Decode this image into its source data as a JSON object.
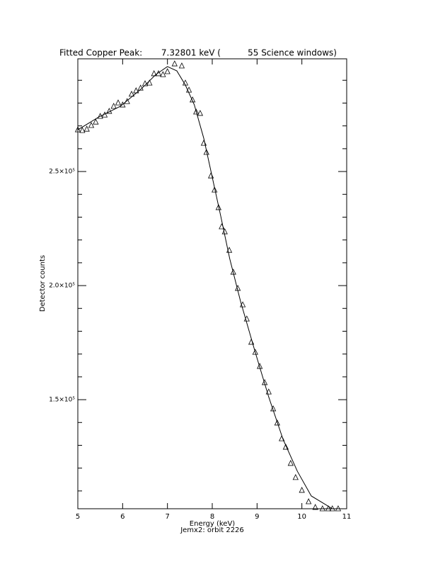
{
  "chart_data": {
    "type": "scatter",
    "title": "Fitted Copper Peak:       7.32801 keV (          55 Science windows)",
    "xlabel": "Energy (keV)",
    "subtitle": "Jemx2: orbit 2226",
    "ylabel": "Detector counts",
    "xlim": [
      5,
      11
    ],
    "xticks": [
      5,
      6,
      7,
      8,
      9,
      10,
      11
    ],
    "ylim": [
      102200,
      299400
    ],
    "yticks": [
      {
        "value": 150000,
        "label": "1.5×10⁵"
      },
      {
        "value": 200000,
        "label": "2.0×10⁵"
      },
      {
        "value": 250000,
        "label": "2.5×10⁵"
      }
    ],
    "yminorticks": [
      110000,
      120000,
      130000,
      140000,
      160000,
      170000,
      180000,
      190000,
      210000,
      220000,
      230000,
      240000,
      260000,
      270000,
      280000,
      290000
    ],
    "color": "#000000",
    "series": [
      {
        "name": "Data",
        "marker": "triangle",
        "color": "#000000",
        "x": [
          5.0,
          5.1,
          5.2,
          5.3,
          5.4,
          5.5,
          5.6,
          5.7,
          5.8,
          5.9,
          6.0,
          6.1,
          6.2,
          6.3,
          6.4,
          6.5,
          6.6,
          6.7,
          6.8,
          6.9,
          7.0,
          7.16,
          7.32,
          7.4,
          7.48,
          7.56,
          7.64,
          7.73,
          7.81,
          7.87,
          7.97,
          8.05,
          8.14,
          8.21,
          8.28,
          8.38,
          8.47,
          8.57,
          8.68,
          8.77,
          8.87,
          8.96,
          9.06,
          9.17,
          9.26,
          9.36,
          9.45,
          9.55,
          9.64,
          9.75,
          9.86,
          10.0,
          10.15,
          10.3,
          10.46,
          10.59,
          10.68,
          10.81
        ],
        "values": [
          268300,
          268000,
          268600,
          270200,
          271700,
          274200,
          274800,
          276400,
          278600,
          280100,
          279200,
          280700,
          283900,
          285400,
          286600,
          288500,
          288800,
          292900,
          292900,
          292500,
          293800,
          297200,
          296300,
          288800,
          285700,
          281400,
          276100,
          275500,
          262400,
          258400,
          248100,
          241900,
          234200,
          225800,
          223600,
          215500,
          205900,
          198800,
          191600,
          185400,
          175200,
          170800,
          164600,
          157500,
          153400,
          146000,
          139800,
          132900,
          129200,
          122100,
          115900,
          110300,
          105300,
          102800,
          102200,
          102200,
          102200,
          102200
        ]
      },
      {
        "name": "Fit",
        "marker": "line",
        "color": "#000000",
        "x": [
          5.0,
          5.47,
          5.95,
          6.42,
          6.74,
          7.0,
          7.21,
          7.4,
          7.6,
          7.81,
          8.0,
          8.19,
          8.39,
          8.63,
          8.95,
          9.26,
          9.58,
          9.9,
          10.21,
          10.53,
          10.68
        ],
        "values": [
          268300,
          273900,
          278600,
          286300,
          292500,
          296000,
          294100,
          287900,
          279200,
          264600,
          247500,
          230400,
          211800,
          193200,
          171400,
          151200,
          132600,
          118600,
          107800,
          104000,
          102200
        ]
      }
    ]
  }
}
